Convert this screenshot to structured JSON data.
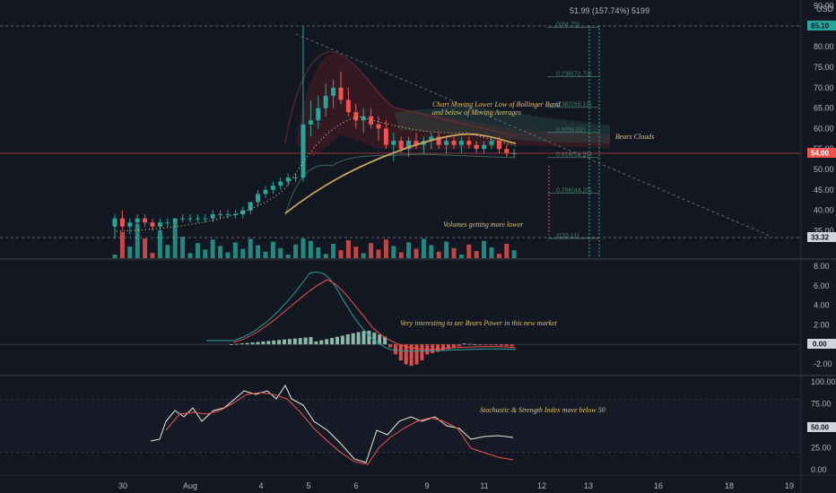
{
  "toolbar": {
    "currency": "USD",
    "measure_label": "51.99 (157.74%) 5199"
  },
  "colors": {
    "background": "#131722",
    "up": "#26a69a",
    "down": "#ef5350",
    "ma": "#c9a55c",
    "bb": "#3a6b5a",
    "annotation": "#e0c068",
    "fib": "#4a7a68",
    "macd_line": "#26a69a",
    "signal_line": "#ef5350",
    "stoch_k": "#e8f0d8",
    "stoch_d": "#ef5350"
  },
  "price_pane": {
    "last_price": "54.00",
    "high_badge": "85.10",
    "low_badge": "33.32",
    "axis_labels": [
      "85.10",
      "80.00",
      "75.00",
      "70.00",
      "65.00",
      "60.00",
      "55.00",
      "50.00",
      "45.00",
      "40.00",
      "35.00",
      "90.00"
    ],
    "fib_levels": [
      {
        "label": "0(84.75)",
        "price": 84.75
      },
      {
        "label": "0.236(72.73)",
        "price": 72.73
      },
      {
        "label": "0.382(65.19)",
        "price": 65.19
      },
      {
        "label": "0.5(59.03)",
        "price": 59.03
      },
      {
        "label": "0.618(52.91)",
        "price": 52.91
      },
      {
        "label": "0.786(44.20)",
        "price": 44.2
      },
      {
        "label": "1(33.11)",
        "price": 33.11
      }
    ],
    "annotations": {
      "bollinger": [
        "Chart Moving Lower Low of Bollinger Band",
        "and below of Moving Averages"
      ],
      "bears_clouds": "Bears Clouds",
      "volumes": "Volumes getting more lower"
    }
  },
  "macd_pane": {
    "axis_labels": [
      "8.00",
      "6.00",
      "4.00",
      "2.00",
      "-2.00"
    ],
    "zero_badge": "0.00",
    "annotation": "Very interesting to see Bears Power in this new market"
  },
  "stoch_pane": {
    "axis_labels": [
      "100.00",
      "75.00",
      "25.00",
      "0.00"
    ],
    "mid_badge": "50.00",
    "annotation": "Stochastic & Strength Index move below 50"
  },
  "time_axis": {
    "labels": [
      "30",
      "Aug",
      "4",
      "5",
      "6",
      "9",
      "11",
      "12",
      "13",
      "16",
      "18",
      "19"
    ]
  },
  "chart_data": {
    "type": "candlestick",
    "price_range": [
      31,
      90
    ],
    "candles": [
      [
        36,
        39,
        33,
        38
      ],
      [
        38,
        40,
        35,
        36
      ],
      [
        36,
        38,
        34,
        37
      ],
      [
        37,
        39,
        35,
        38
      ],
      [
        38,
        39,
        36,
        37
      ],
      [
        37,
        38,
        35,
        36
      ],
      [
        36,
        38,
        35,
        37
      ],
      [
        37,
        38,
        36,
        37
      ],
      [
        37,
        38,
        36,
        38
      ],
      [
        38,
        39,
        37,
        38
      ],
      [
        38,
        39,
        37,
        38
      ],
      [
        38,
        39,
        37,
        38
      ],
      [
        38,
        39,
        37,
        38
      ],
      [
        38,
        40,
        37,
        39
      ],
      [
        39,
        40,
        38,
        39
      ],
      [
        39,
        40,
        38,
        39
      ],
      [
        39,
        40,
        38,
        39
      ],
      [
        39,
        41,
        38,
        40
      ],
      [
        40,
        42,
        39,
        42
      ],
      [
        42,
        45,
        41,
        44
      ],
      [
        44,
        46,
        43,
        45
      ],
      [
        45,
        47,
        44,
        46
      ],
      [
        46,
        48,
        45,
        47
      ],
      [
        47,
        49,
        46,
        48
      ],
      [
        48,
        49,
        47,
        48
      ],
      [
        48,
        85,
        47,
        61
      ],
      [
        61,
        67,
        58,
        62
      ],
      [
        62,
        68,
        60,
        65
      ],
      [
        65,
        71,
        63,
        68
      ],
      [
        68,
        72,
        65,
        70
      ],
      [
        70,
        74,
        66,
        67
      ],
      [
        67,
        70,
        63,
        64
      ],
      [
        64,
        66,
        60,
        62
      ],
      [
        62,
        65,
        59,
        63
      ],
      [
        63,
        65,
        60,
        61
      ],
      [
        61,
        63,
        57,
        60
      ],
      [
        60,
        62,
        55,
        56
      ],
      [
        56,
        59,
        52,
        57
      ],
      [
        57,
        58,
        54,
        55
      ],
      [
        55,
        58,
        53,
        57
      ],
      [
        57,
        59,
        55,
        56
      ],
      [
        56,
        58,
        54,
        57
      ],
      [
        57,
        59,
        55,
        58
      ],
      [
        58,
        59,
        55,
        56
      ],
      [
        56,
        58,
        54,
        57
      ],
      [
        57,
        58,
        55,
        56
      ],
      [
        56,
        58,
        54,
        57
      ],
      [
        57,
        58,
        55,
        56
      ],
      [
        56,
        57,
        54,
        55
      ],
      [
        55,
        57,
        54,
        56
      ],
      [
        56,
        58,
        55,
        57
      ],
      [
        57,
        58,
        54,
        55
      ],
      [
        55,
        56,
        53,
        54
      ],
      [
        54,
        55,
        53,
        54
      ]
    ],
    "volume_note": "Volumes getting more lower",
    "macd": {
      "range": [
        -3,
        9
      ]
    },
    "stoch": {
      "range": [
        0,
        100
      ]
    }
  }
}
